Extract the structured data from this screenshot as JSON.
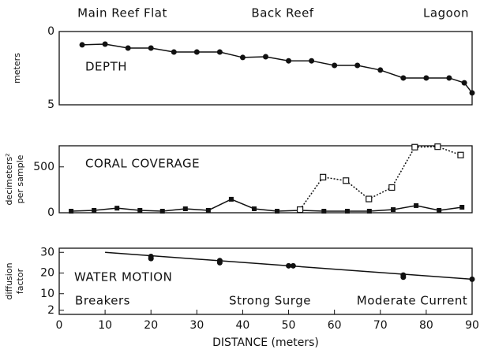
{
  "chart_data": [
    {
      "type": "line",
      "title": "DEPTH",
      "ylabel": [
        "meters"
      ],
      "top_labels": [
        "Main Reef Flat",
        "Back Reef",
        "Lagoon"
      ],
      "xlim": [
        0,
        90
      ],
      "ylim": [
        5,
        0
      ],
      "yticks": [
        0,
        5
      ],
      "series": [
        {
          "color": "#111",
          "line": "solid",
          "marker": "filled-circle",
          "x": [
            5,
            10,
            15,
            20,
            25,
            30,
            35,
            40,
            45,
            50,
            55,
            60,
            65,
            70,
            75,
            80,
            85,
            88.3,
            90
          ],
          "values": [
            0.91,
            0.86,
            1.13,
            1.13,
            1.4,
            1.4,
            1.4,
            1.77,
            1.72,
            2.0,
            2.0,
            2.31,
            2.31,
            2.63,
            3.17,
            3.17,
            3.17,
            3.5,
            4.19
          ]
        }
      ]
    },
    {
      "type": "line",
      "title": "CORAL COVERAGE",
      "ylabel": [
        "decimeters²",
        "per sample"
      ],
      "xlim": [
        0,
        90
      ],
      "ylim": [
        0,
        730
      ],
      "yticks": [
        0,
        500
      ],
      "series": [
        {
          "color": "#111",
          "line": "solid",
          "marker": "filled-square",
          "x": [
            2.6,
            7.6,
            12.6,
            17.6,
            22.5,
            27.5,
            32.5,
            37.5,
            42.5,
            47.5,
            52.5,
            57.7,
            62.8,
            67.6,
            72.8,
            77.8,
            82.8,
            87.8
          ],
          "values": [
            17,
            26,
            50,
            26,
            17,
            43,
            26,
            147,
            43,
            17,
            26,
            17,
            17,
            17,
            34,
            78,
            26,
            60
          ]
        },
        {
          "color": "#111",
          "line": "dotted",
          "marker": "open-square",
          "x": [
            52.5,
            57.5,
            62.5,
            67.5,
            72.5,
            77.5,
            82.5,
            87.5
          ],
          "values": [
            34,
            388,
            350,
            150,
            275,
            715,
            720,
            629
          ]
        }
      ]
    },
    {
      "type": "scatter",
      "title": "WATER MOTION",
      "ylabel": [
        "diffusion",
        "factor"
      ],
      "bottom_labels": [
        "Breakers",
        "Strong Surge",
        "Moderate Current"
      ],
      "xlabel": "DISTANCE (meters)",
      "xlim": [
        0,
        90
      ],
      "xticks": [
        0,
        10,
        20,
        30,
        40,
        50,
        60,
        70,
        80,
        90
      ],
      "ylim": [
        0,
        32
      ],
      "yticks": [
        30,
        20,
        10,
        2
      ],
      "series": [
        {
          "color": "#111",
          "line": "solid",
          "marker": "none",
          "x": [
            10,
            90
          ],
          "values": [
            30,
            17
          ]
        },
        {
          "color": "#111",
          "line": "none",
          "marker": "filled-circle",
          "x": [
            20,
            20,
            35,
            35,
            50,
            51,
            75,
            75,
            90
          ],
          "values": [
            28,
            27,
            26,
            25,
            23.5,
            23.5,
            19,
            18,
            17
          ]
        }
      ]
    }
  ]
}
